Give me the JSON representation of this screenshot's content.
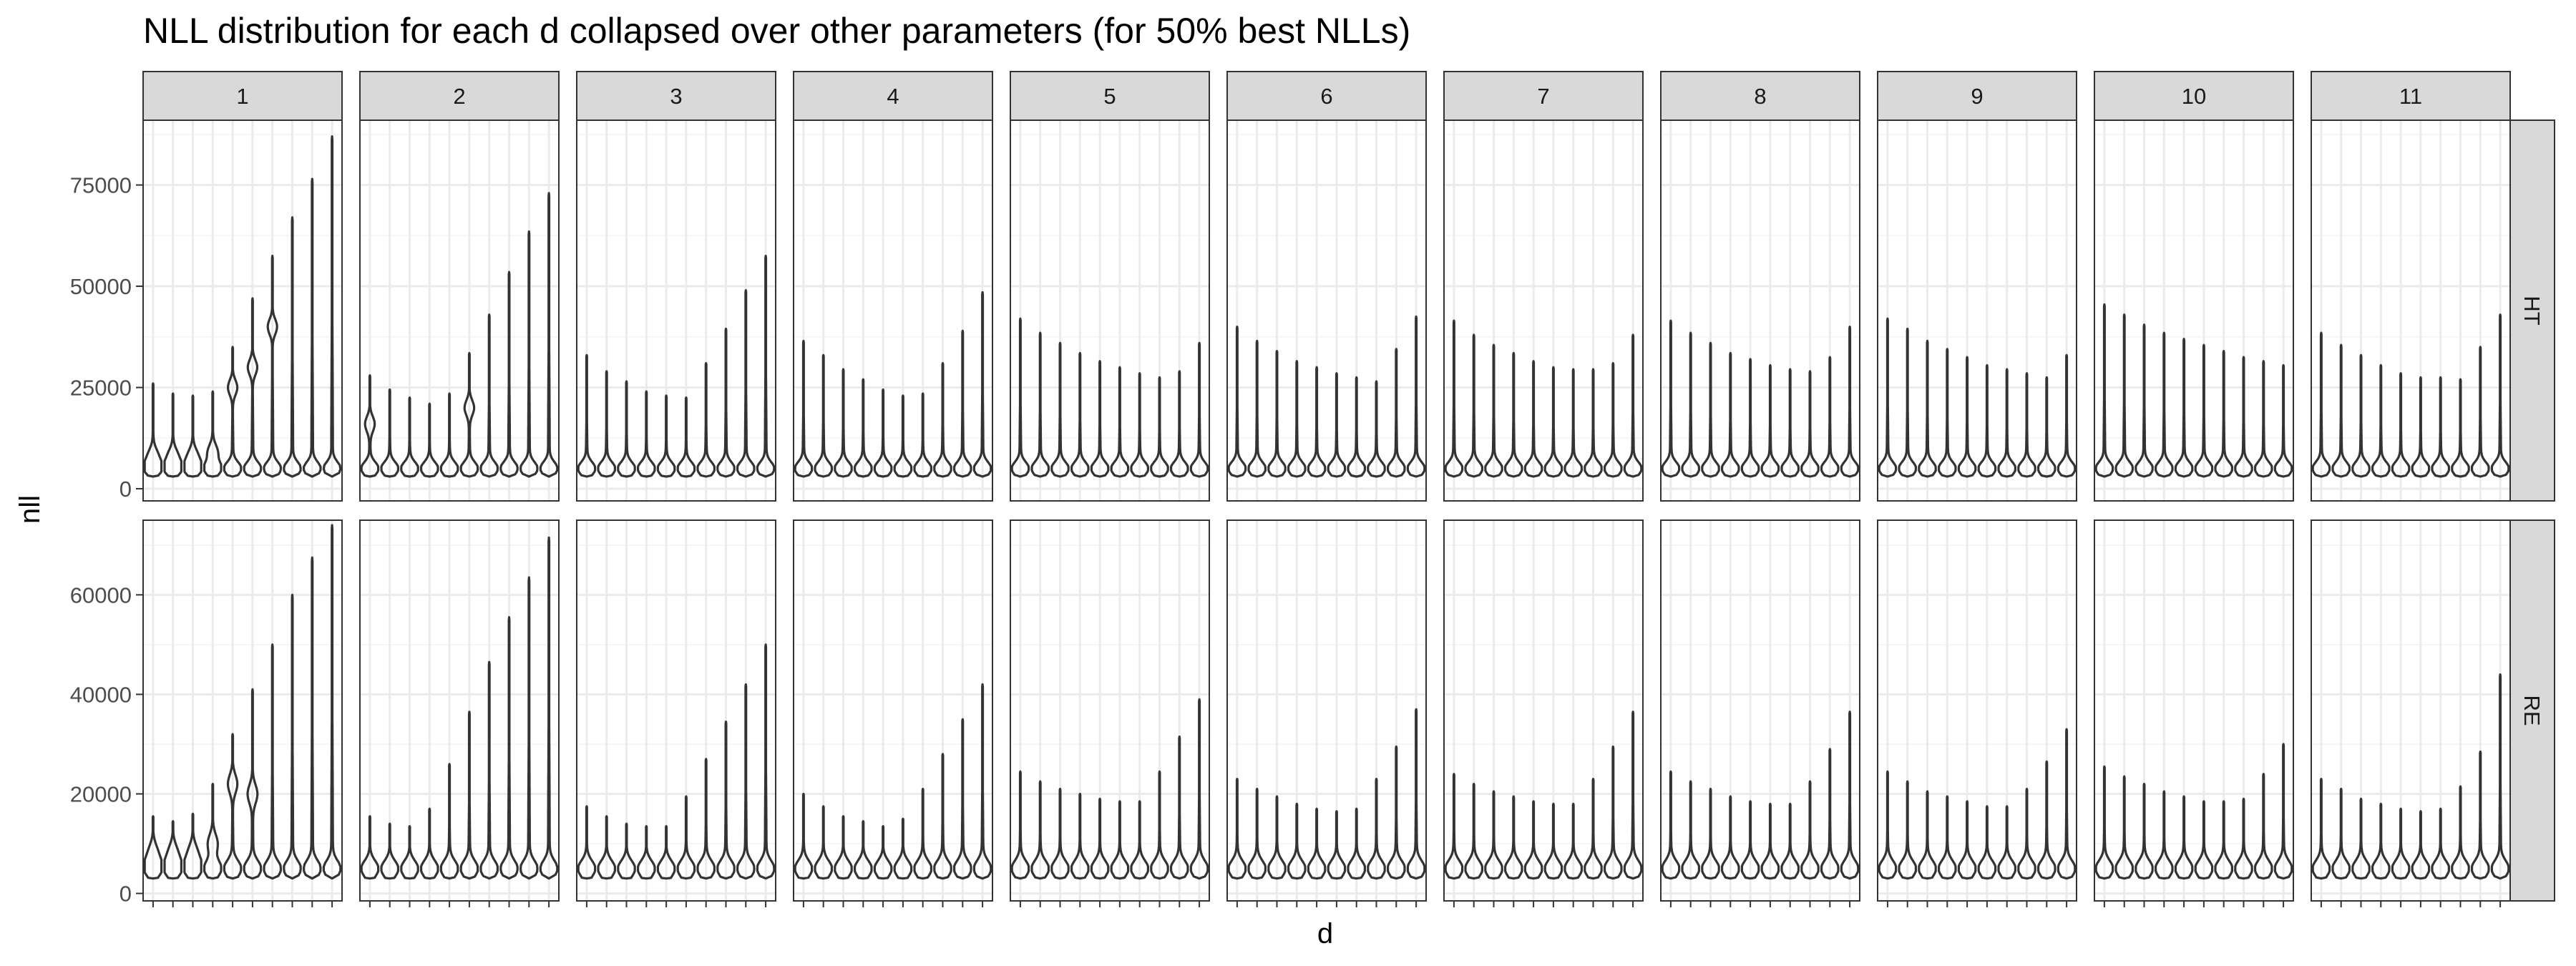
{
  "chart_data": {
    "type": "violin",
    "title": "NLL distribution for each d collapsed over other parameters (for 50% best NLLs)",
    "xlabel": "d",
    "ylabel": "nll",
    "facet_cols": [
      "1",
      "2",
      "3",
      "4",
      "5",
      "6",
      "7",
      "8",
      "9",
      "10",
      "11"
    ],
    "facet_rows": [
      "HT",
      "RE"
    ],
    "violins_per_panel": 10,
    "grid": true,
    "rows": [
      {
        "name": "HT",
        "ylim": [
          -3000,
          91000
        ],
        "yticks": [
          0,
          25000,
          50000,
          75000
        ],
        "ytick_labels": [
          "0",
          "25000",
          "50000",
          "75000"
        ],
        "panels": [
          {
            "maxima": [
              26000,
              23500,
              23000,
              24000,
              35000,
              47000,
              57500,
              67000,
              76500,
              87000
            ],
            "bulge": [
              8000,
              8000,
              8000,
              9000,
              25000,
              30000,
              40000,
              0,
              0,
              0
            ]
          },
          {
            "maxima": [
              28000,
              24500,
              22500,
              21000,
              23500,
              33500,
              43000,
              53500,
              63500,
              73000
            ],
            "bulge": [
              16000,
              0,
              0,
              0,
              0,
              20000,
              0,
              0,
              0,
              0
            ]
          },
          {
            "maxima": [
              33000,
              29000,
              26500,
              24000,
              23000,
              22500,
              31000,
              39500,
              49000,
              57500
            ],
            "bulge": [
              0,
              0,
              0,
              0,
              0,
              0,
              0,
              0,
              0,
              0
            ]
          },
          {
            "maxima": [
              36500,
              33000,
              29500,
              27000,
              24500,
              23000,
              23500,
              31000,
              39000,
              48500
            ],
            "bulge": [
              0,
              0,
              0,
              0,
              0,
              0,
              0,
              0,
              0,
              0
            ]
          },
          {
            "maxima": [
              42000,
              38500,
              36000,
              33500,
              31500,
              30000,
              28500,
              27500,
              29000,
              36000
            ],
            "bulge": [
              0,
              0,
              0,
              0,
              0,
              0,
              0,
              0,
              0,
              0
            ]
          },
          {
            "maxima": [
              40000,
              36500,
              34000,
              31500,
              30000,
              28500,
              27500,
              26500,
              34500,
              42500
            ],
            "bulge": [
              0,
              0,
              0,
              0,
              0,
              0,
              0,
              0,
              0,
              0
            ]
          },
          {
            "maxima": [
              41500,
              38000,
              35500,
              33500,
              31500,
              30000,
              29500,
              29500,
              31000,
              38000
            ],
            "bulge": [
              0,
              0,
              0,
              0,
              0,
              0,
              0,
              0,
              0,
              0
            ]
          },
          {
            "maxima": [
              41500,
              38500,
              36000,
              33500,
              32000,
              30500,
              29500,
              29000,
              32500,
              40000
            ],
            "bulge": [
              0,
              0,
              0,
              0,
              0,
              0,
              0,
              0,
              0,
              0
            ]
          },
          {
            "maxima": [
              42000,
              39500,
              36500,
              34500,
              32500,
              30500,
              29500,
              28500,
              27500,
              33000
            ],
            "bulge": [
              0,
              0,
              0,
              0,
              0,
              0,
              0,
              0,
              0,
              0
            ]
          },
          {
            "maxima": [
              45500,
              43000,
              40500,
              38500,
              37000,
              35500,
              34000,
              32500,
              31500,
              30500
            ],
            "bulge": [
              0,
              0,
              0,
              0,
              0,
              0,
              0,
              0,
              0,
              0
            ]
          },
          {
            "maxima": [
              38500,
              35500,
              33000,
              30500,
              28500,
              27500,
              27500,
              27000,
              35000,
              43000
            ],
            "bulge": [
              0,
              0,
              0,
              0,
              0,
              0,
              0,
              0,
              0,
              0
            ]
          }
        ]
      },
      {
        "name": "RE",
        "ylim": [
          -1500,
          75000
        ],
        "yticks": [
          0,
          20000,
          40000,
          60000
        ],
        "ytick_labels": [
          "0",
          "20000",
          "40000",
          "60000"
        ],
        "panels": [
          {
            "maxima": [
              15500,
              14500,
              16000,
              22000,
              32000,
              41000,
              50000,
              60000,
              67500,
              74000
            ],
            "bulge": [
              8000,
              8000,
              8000,
              10000,
              22000,
              20000,
              0,
              0,
              0,
              0
            ]
          },
          {
            "maxima": [
              15500,
              14000,
              13500,
              17000,
              26000,
              36500,
              46500,
              55500,
              63500,
              71500
            ],
            "bulge": [
              0,
              0,
              0,
              0,
              0,
              0,
              0,
              0,
              0,
              0
            ]
          },
          {
            "maxima": [
              17500,
              15500,
              14000,
              13500,
              13500,
              19500,
              27000,
              34500,
              42000,
              50000
            ],
            "bulge": [
              0,
              0,
              0,
              0,
              0,
              0,
              0,
              0,
              0,
              0
            ]
          },
          {
            "maxima": [
              20000,
              17500,
              15500,
              14500,
              13500,
              15000,
              21000,
              28000,
              35000,
              42000
            ],
            "bulge": [
              0,
              0,
              0,
              0,
              0,
              0,
              0,
              0,
              0,
              0
            ]
          },
          {
            "maxima": [
              24500,
              22500,
              21000,
              20000,
              19000,
              18500,
              18500,
              24500,
              31500,
              39000
            ],
            "bulge": [
              0,
              0,
              0,
              0,
              0,
              0,
              0,
              0,
              0,
              0
            ]
          },
          {
            "maxima": [
              23000,
              21000,
              19500,
              18000,
              17000,
              16500,
              17000,
              23000,
              29500,
              37000
            ],
            "bulge": [
              0,
              0,
              0,
              0,
              0,
              0,
              0,
              0,
              0,
              0
            ]
          },
          {
            "maxima": [
              24000,
              22000,
              20500,
              19500,
              18500,
              18000,
              18000,
              23000,
              29500,
              36500
            ],
            "bulge": [
              0,
              0,
              0,
              0,
              0,
              0,
              0,
              0,
              0,
              0
            ]
          },
          {
            "maxima": [
              24500,
              22500,
              21000,
              19500,
              18500,
              18000,
              18000,
              22500,
              29000,
              36500
            ],
            "bulge": [
              0,
              0,
              0,
              0,
              0,
              0,
              0,
              0,
              0,
              0
            ]
          },
          {
            "maxima": [
              24500,
              22500,
              20500,
              19500,
              18500,
              17500,
              17500,
              21000,
              26500,
              33000
            ],
            "bulge": [
              0,
              0,
              0,
              0,
              0,
              0,
              0,
              0,
              0,
              0
            ]
          },
          {
            "maxima": [
              25500,
              23500,
              22000,
              20500,
              19500,
              18500,
              18500,
              19000,
              24000,
              30000
            ],
            "bulge": [
              0,
              0,
              0,
              0,
              0,
              0,
              0,
              0,
              0,
              0
            ]
          },
          {
            "maxima": [
              23000,
              21000,
              19000,
              18000,
              17000,
              16500,
              17000,
              21500,
              28500,
              44000
            ],
            "bulge": [
              0,
              0,
              0,
              0,
              0,
              0,
              0,
              0,
              0,
              0
            ]
          }
        ]
      }
    ],
    "colors": {
      "line": "#333333",
      "panel_border": "#333333",
      "strip_fill": "#d9d9d9",
      "grid_major": "#ebebeb",
      "grid_minor": "#f3f3f3",
      "tick_text": "#4d4d4d"
    }
  }
}
